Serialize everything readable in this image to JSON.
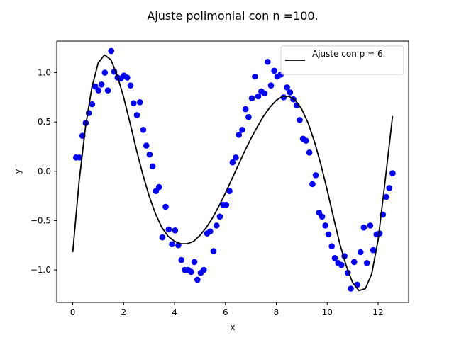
{
  "chart_data": {
    "type": "scatter",
    "title": "Ajuste polimonial con n =100.",
    "xlabel": "x",
    "ylabel": "y",
    "xlim": [
      -0.63,
      13.2
    ],
    "ylim": [
      -1.33,
      1.32
    ],
    "xticks": [
      0,
      2,
      4,
      6,
      8,
      10,
      12
    ],
    "yticks": [
      -1.0,
      -0.5,
      0.0,
      0.5,
      1.0
    ],
    "xtick_labels": [
      "0",
      "2",
      "4",
      "6",
      "8",
      "10",
      "12"
    ],
    "ytick_labels": [
      "−1.0",
      "−0.5",
      "0.0",
      "0.5",
      "1.0"
    ],
    "legend": {
      "position": "upper right",
      "entries": [
        "Ajuste con p = 6."
      ]
    },
    "series": [
      {
        "kind": "scatter",
        "color": "#0000ff",
        "x": [
          0.13,
          0.26,
          0.38,
          0.51,
          0.63,
          0.76,
          0.88,
          1.01,
          1.13,
          1.26,
          1.38,
          1.51,
          1.63,
          1.76,
          1.89,
          2.01,
          2.14,
          2.27,
          2.39,
          2.52,
          2.64,
          2.77,
          2.89,
          3.02,
          3.14,
          3.27,
          3.39,
          3.52,
          3.65,
          3.77,
          3.9,
          4.02,
          4.15,
          4.27,
          4.4,
          4.53,
          4.65,
          4.78,
          4.9,
          5.03,
          5.15,
          5.28,
          5.4,
          5.53,
          5.65,
          5.78,
          5.91,
          6.03,
          6.16,
          6.28,
          6.41,
          6.53,
          6.66,
          6.79,
          6.91,
          7.04,
          7.16,
          7.29,
          7.41,
          7.54,
          7.66,
          7.79,
          7.92,
          8.04,
          8.17,
          8.29,
          8.42,
          8.54,
          8.67,
          8.8,
          8.92,
          9.05,
          9.17,
          9.3,
          9.42,
          9.55,
          9.68,
          9.8,
          9.93,
          10.05,
          10.18,
          10.3,
          10.43,
          10.56,
          10.68,
          10.81,
          10.93,
          11.06,
          11.18,
          11.31,
          11.44,
          11.56,
          11.69,
          11.81,
          11.94,
          12.06,
          12.19,
          12.32,
          12.44,
          12.57
        ],
        "y": [
          0.14,
          0.14,
          0.36,
          0.49,
          0.59,
          0.68,
          0.86,
          0.82,
          0.88,
          1.0,
          0.82,
          1.22,
          1.01,
          0.95,
          0.94,
          0.97,
          0.95,
          0.87,
          0.69,
          0.57,
          0.7,
          0.42,
          0.26,
          0.17,
          0.05,
          -0.2,
          -0.16,
          -0.67,
          -0.36,
          -0.59,
          -0.74,
          -0.6,
          -0.75,
          -0.9,
          -1.0,
          -1.0,
          -1.02,
          -0.92,
          -1.1,
          -1.03,
          -1.0,
          -0.63,
          -0.61,
          -0.81,
          -0.55,
          -0.46,
          -0.34,
          -0.34,
          -0.2,
          0.09,
          0.14,
          0.37,
          0.42,
          0.63,
          0.55,
          0.74,
          0.96,
          0.76,
          0.81,
          0.79,
          1.11,
          0.87,
          1.02,
          0.96,
          0.98,
          0.75,
          0.85,
          0.8,
          0.73,
          0.67,
          0.52,
          0.33,
          0.31,
          0.19,
          -0.13,
          -0.04,
          -0.42,
          -0.46,
          -0.55,
          -0.64,
          -0.76,
          -0.88,
          -0.93,
          -0.95,
          -0.86,
          -1.03,
          -1.19,
          -0.92,
          -1.15,
          -0.82,
          -0.57,
          -0.93,
          -0.55,
          -0.8,
          -0.64,
          -0.63,
          -0.44,
          -0.26,
          -0.17,
          -0.02
        ]
      },
      {
        "kind": "line",
        "name": "Ajuste con p = 6.",
        "color": "#000000",
        "x": [
          0.0,
          0.25,
          0.5,
          0.75,
          1.0,
          1.25,
          1.5,
          1.75,
          2.0,
          2.25,
          2.5,
          2.75,
          3.0,
          3.25,
          3.5,
          3.75,
          4.0,
          4.25,
          4.5,
          4.75,
          5.0,
          5.25,
          5.5,
          5.75,
          6.0,
          6.25,
          6.5,
          6.75,
          7.0,
          7.25,
          7.5,
          7.75,
          8.0,
          8.25,
          8.5,
          8.75,
          9.0,
          9.25,
          9.5,
          9.75,
          10.0,
          10.25,
          10.5,
          10.75,
          11.0,
          11.25,
          11.5,
          11.75,
          12.0,
          12.25,
          12.57
        ],
        "y": [
          -0.82,
          -0.1,
          0.45,
          0.85,
          1.1,
          1.18,
          1.13,
          0.97,
          0.75,
          0.49,
          0.22,
          -0.03,
          -0.25,
          -0.43,
          -0.57,
          -0.66,
          -0.71,
          -0.735,
          -0.735,
          -0.71,
          -0.65,
          -0.57,
          -0.47,
          -0.35,
          -0.22,
          -0.08,
          0.06,
          0.2,
          0.33,
          0.45,
          0.56,
          0.65,
          0.72,
          0.76,
          0.76,
          0.72,
          0.63,
          0.49,
          0.3,
          0.07,
          -0.19,
          -0.47,
          -0.74,
          -0.96,
          -1.13,
          -1.21,
          -1.19,
          -1.04,
          -0.7,
          -0.16,
          0.56
        ]
      }
    ]
  }
}
